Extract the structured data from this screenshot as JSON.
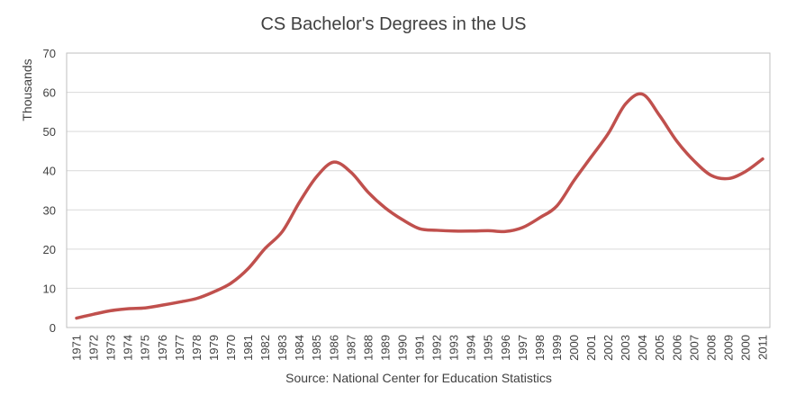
{
  "chart_data": {
    "type": "line",
    "title": "CS Bachelor's Degrees in the US",
    "ylabel": "Thousands",
    "xlabel": "",
    "source": "Source: National Center for Education Statistics",
    "ylim": [
      0,
      70
    ],
    "yticks": [
      0,
      10,
      20,
      30,
      40,
      50,
      60,
      70
    ],
    "grid": true,
    "legend": "none",
    "series_color": "#c0504d",
    "grid_color": "#d9d9d9",
    "categories": [
      "1971",
      "1972",
      "1973",
      "1974",
      "1975",
      "1976",
      "1977",
      "1978",
      "1979",
      "1970",
      "1981",
      "1982",
      "1983",
      "1984",
      "1985",
      "1986",
      "1987",
      "1988",
      "1989",
      "1990",
      "1991",
      "1992",
      "1993",
      "1994",
      "1995",
      "1996",
      "1997",
      "1998",
      "1999",
      "2000",
      "2001",
      "2002",
      "2003",
      "2004",
      "2005",
      "2006",
      "2007",
      "2008",
      "2009",
      "2000",
      "2011"
    ],
    "series": [
      {
        "values": [
          2.4,
          3.4,
          4.3,
          4.8,
          5.0,
          5.7,
          6.5,
          7.4,
          9.1,
          11.3,
          15.0,
          20.2,
          24.5,
          32.0,
          38.5,
          42.2,
          39.6,
          34.5,
          30.5,
          27.5,
          25.2,
          24.8,
          24.6,
          24.6,
          24.7,
          24.5,
          25.5,
          28.0,
          31.0,
          37.5,
          43.5,
          49.5,
          57.0,
          59.5,
          54.0,
          47.5,
          42.5,
          38.8,
          38.0,
          39.8,
          43.0
        ]
      }
    ]
  }
}
